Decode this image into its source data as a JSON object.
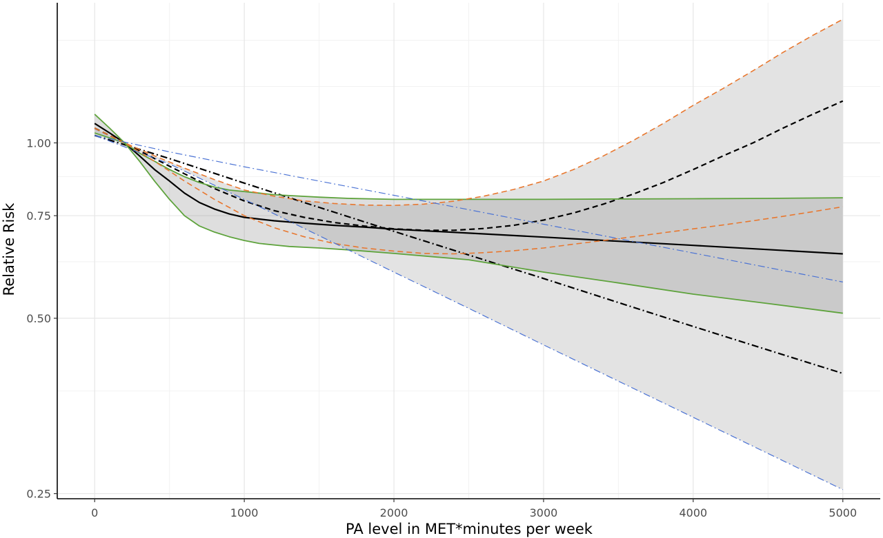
{
  "chart_data": {
    "type": "line",
    "title": "",
    "xlabel": "PA level in MET*minutes per week",
    "ylabel": "Relative Risk",
    "x_scale": "linear",
    "y_scale": "log",
    "xlim": [
      -250,
      5250
    ],
    "ylim": [
      0.245,
      1.74
    ],
    "x_ticks": [
      0,
      1000,
      2000,
      3000,
      4000,
      5000
    ],
    "x_tick_labels": [
      "0",
      "1000",
      "2000",
      "3000",
      "4000",
      "5000"
    ],
    "y_ticks": [
      0.25,
      0.5,
      0.75,
      1.0
    ],
    "y_tick_labels": [
      "0.25",
      "0.50",
      "0.75",
      "1.00"
    ],
    "x_minor_ticks": [
      500,
      1500,
      2500,
      3500,
      4500
    ],
    "y_minor_ticks": [
      0.375,
      0.625,
      0.875,
      1.25,
      1.5
    ],
    "grid": true,
    "legend": "none",
    "series": [
      {
        "style": "solid",
        "color": "#000000",
        "stroke_width": 2.2,
        "x": [
          0,
          100,
          200,
          300,
          400,
          500,
          600,
          700,
          800,
          900,
          1000,
          1200,
          1400,
          1600,
          1800,
          2000,
          2500,
          3000,
          3500,
          4000,
          4500,
          5000
        ],
        "y": [
          1.08,
          1.04,
          1.0,
          0.95,
          0.9,
          0.86,
          0.82,
          0.79,
          0.77,
          0.755,
          0.745,
          0.735,
          0.728,
          0.722,
          0.717,
          0.711,
          0.7,
          0.689,
          0.678,
          0.667,
          0.656,
          0.645
        ]
      },
      {
        "style": "dashed",
        "color": "#000000",
        "stroke_width": 2.2,
        "x": [
          0,
          200,
          400,
          600,
          800,
          1000,
          1200,
          1400,
          1600,
          1800,
          2000,
          2200,
          2400,
          2600,
          2800,
          3000,
          3200,
          3400,
          3600,
          3800,
          4000,
          4200,
          4400,
          4600,
          4800,
          5000
        ],
        "y": [
          1.06,
          1.0,
          0.94,
          0.885,
          0.835,
          0.795,
          0.765,
          0.745,
          0.73,
          0.72,
          0.712,
          0.708,
          0.708,
          0.713,
          0.722,
          0.737,
          0.758,
          0.785,
          0.817,
          0.855,
          0.9,
          0.95,
          1.0,
          1.06,
          1.12,
          1.18
        ]
      },
      {
        "style": "dashdot",
        "color": "#000000",
        "stroke_width": 2.2,
        "x": [
          0,
          500,
          1000,
          1500,
          2000,
          2500,
          3000,
          3500,
          4000,
          4500,
          5000
        ],
        "y": [
          1.03,
          0.94,
          0.853,
          0.775,
          0.705,
          0.642,
          0.585,
          0.532,
          0.484,
          0.441,
          0.402
        ]
      },
      {
        "style": "solid",
        "color": "#5ea33c",
        "stroke_width": 1.8,
        "x": [
          0,
          100,
          200,
          300,
          400,
          500,
          600,
          700,
          800,
          900,
          1000,
          1100,
          1200,
          1300,
          1500,
          1700,
          2000,
          2500,
          3000,
          3500,
          4000,
          4500,
          5000
        ],
        "y": [
          1.04,
          1.02,
          1.0,
          0.96,
          0.93,
          0.9,
          0.875,
          0.855,
          0.84,
          0.83,
          0.825,
          0.82,
          0.815,
          0.812,
          0.807,
          0.803,
          0.8,
          0.8,
          0.8,
          0.801,
          0.802,
          0.803,
          0.805
        ]
      },
      {
        "style": "solid",
        "color": "#5ea33c",
        "stroke_width": 1.8,
        "x": [
          0,
          100,
          200,
          300,
          400,
          500,
          600,
          700,
          800,
          900,
          1000,
          1100,
          1200,
          1300,
          1500,
          1700,
          2000,
          2500,
          3000,
          3500,
          4000,
          4500,
          5000
        ],
        "y": [
          1.12,
          1.06,
          1.0,
          0.93,
          0.86,
          0.8,
          0.75,
          0.72,
          0.703,
          0.69,
          0.68,
          0.672,
          0.668,
          0.664,
          0.66,
          0.655,
          0.646,
          0.63,
          0.6,
          0.575,
          0.55,
          0.53,
          0.51
        ]
      },
      {
        "style": "dashed",
        "color": "#e8772e",
        "stroke_width": 1.6,
        "x": [
          0,
          200,
          400,
          600,
          800,
          1000,
          1200,
          1400,
          1600,
          1800,
          2000,
          2200,
          2400,
          2600,
          2800,
          3000,
          3200,
          3400,
          3600,
          3800,
          4000,
          4200,
          4400,
          4600,
          4800,
          5000
        ],
        "y": [
          1.06,
          1.0,
          0.95,
          0.905,
          0.865,
          0.83,
          0.81,
          0.795,
          0.787,
          0.782,
          0.781,
          0.785,
          0.794,
          0.81,
          0.832,
          0.86,
          0.9,
          0.95,
          1.01,
          1.08,
          1.16,
          1.24,
          1.33,
          1.43,
          1.53,
          1.63
        ]
      },
      {
        "style": "dashed",
        "color": "#e8772e",
        "stroke_width": 1.6,
        "x": [
          0,
          200,
          400,
          600,
          800,
          1000,
          1200,
          1400,
          1600,
          1800,
          2000,
          2200,
          2400,
          2600,
          2800,
          3000,
          3200,
          3400,
          3600,
          3800,
          4000,
          4200,
          4400,
          4600,
          4800,
          5000
        ],
        "y": [
          1.06,
          1.0,
          0.93,
          0.86,
          0.8,
          0.75,
          0.715,
          0.69,
          0.672,
          0.66,
          0.652,
          0.646,
          0.645,
          0.648,
          0.653,
          0.66,
          0.67,
          0.68,
          0.69,
          0.701,
          0.712,
          0.723,
          0.735,
          0.748,
          0.762,
          0.777
        ]
      },
      {
        "style": "dashdot",
        "color": "#4a72d4",
        "stroke_width": 1.2,
        "x": [
          0,
          500,
          1000,
          1500,
          2000,
          2500,
          3000,
          3500,
          4000,
          4500,
          5000
        ],
        "y": [
          1.03,
          0.965,
          0.91,
          0.86,
          0.813,
          0.768,
          0.725,
          0.685,
          0.647,
          0.611,
          0.577
        ]
      },
      {
        "style": "dashdot",
        "color": "#4a72d4",
        "stroke_width": 1.2,
        "x": [
          0,
          500,
          1000,
          1500,
          2000,
          2500,
          3000,
          3500,
          4000,
          4500,
          5000
        ],
        "y": [
          1.03,
          0.92,
          0.8,
          0.693,
          0.6,
          0.52,
          0.45,
          0.39,
          0.338,
          0.293,
          0.254
        ]
      }
    ],
    "bands": [
      {
        "fill": "#e3e3e3",
        "opacity": 1.0,
        "upper_series": 5,
        "lower_series": 8
      },
      {
        "fill": "#8a8a8a",
        "opacity": 0.28,
        "upper_series": 3,
        "lower_series": 4
      }
    ]
  }
}
